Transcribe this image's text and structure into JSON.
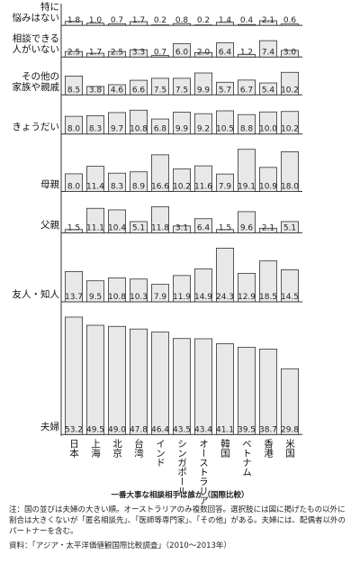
{
  "chart_data": {
    "type": "bar",
    "categories": [
      "日本",
      "上海",
      "北京",
      "台湾",
      "インド",
      "シンガポール",
      "オーストラリア",
      "韓国",
      "ベトナム",
      "香港",
      "米国"
    ],
    "series": [
      {
        "name": "特に\n悩みはない",
        "color": "#e8e8e8",
        "values": [
          1.8,
          1.0,
          0.7,
          1.7,
          0.2,
          0.8,
          0.2,
          1.4,
          0.4,
          2.1,
          0.6
        ],
        "value_labels": [
          "1.8",
          "1.0",
          "0.7",
          "1.7",
          "0.2",
          "0.8",
          "0.2",
          "1.4",
          "0.4",
          "2.1",
          "0.6"
        ]
      },
      {
        "name": "相談できる\n人がいない",
        "color": "#e8e8e8",
        "values": [
          2.5,
          1.7,
          2.5,
          3.3,
          0.7,
          6.0,
          2.0,
          6.4,
          1.2,
          7.4,
          3.0
        ],
        "value_labels": [
          "2.5",
          "1.7",
          "2.5",
          "3.3",
          "0.7",
          "6.0",
          "2.0",
          "6.4",
          "1.2",
          "7.4",
          "3.0"
        ]
      },
      {
        "name": "その他の\n家族や親戚",
        "color": "#e8e8e8",
        "values": [
          8.5,
          3.8,
          4.6,
          6.6,
          7.5,
          7.5,
          9.9,
          5.7,
          6.7,
          5.4,
          10.2
        ],
        "value_labels": [
          "8.5",
          "3.8",
          "4.6",
          "6.6",
          "7.5",
          "7.5",
          "9.9",
          "5.7",
          "6.7",
          "5.4",
          "10.2"
        ]
      },
      {
        "name": "きょうだい",
        "color": "#e8e8e8",
        "values": [
          8.0,
          8.3,
          9.7,
          10.8,
          6.8,
          9.9,
          9.2,
          10.5,
          8.8,
          10.0,
          10.2
        ],
        "value_labels": [
          "8.0",
          "8.3",
          "9.7",
          "10.8",
          "6.8",
          "9.9",
          "9.2",
          "10.5",
          "8.8",
          "10.0",
          "10.2"
        ]
      },
      {
        "name": "母親",
        "color": "#e8e8e8",
        "values": [
          8.0,
          11.4,
          8.3,
          8.9,
          16.6,
          10.2,
          11.6,
          7.9,
          19.1,
          10.9,
          18.0
        ],
        "value_labels": [
          "8.0",
          "11.4",
          "8.3",
          "8.9",
          "16.6",
          "10.2",
          "11.6",
          "7.9",
          "19.1",
          "10.9",
          "18.0"
        ]
      },
      {
        "name": "父親",
        "color": "#e8e8e8",
        "values": [
          1.5,
          11.1,
          10.4,
          5.1,
          11.8,
          3.1,
          6.4,
          1.5,
          9.6,
          2.1,
          5.1
        ],
        "value_labels": [
          "1.5",
          "11.1",
          "10.4",
          "5.1",
          "11.8",
          "3.1",
          "6.4",
          "1.5",
          "9.6",
          "2.1",
          "5.1"
        ]
      },
      {
        "name": "友人・知人",
        "color": "#e8e8e8",
        "values": [
          13.7,
          9.5,
          10.8,
          10.3,
          7.9,
          11.9,
          14.9,
          24.3,
          12.9,
          18.5,
          14.5
        ],
        "value_labels": [
          "13.7",
          "9.5",
          "10.8",
          "10.3",
          "7.9",
          "11.9",
          "14.9",
          "24.3",
          "12.9",
          "18.5",
          "14.5"
        ]
      },
      {
        "name": "夫婦",
        "color": "#e8e8e8",
        "values": [
          53.2,
          49.5,
          49.0,
          47.8,
          46.4,
          43.5,
          43.4,
          41.1,
          39.5,
          38.7,
          29.8
        ],
        "value_labels": [
          "53.2",
          "49.5",
          "49.0",
          "47.8",
          "46.4",
          "43.5",
          "43.4",
          "41.1",
          "39.5",
          "38.7",
          "29.8"
        ]
      }
    ],
    "caption": "一番大事な相談相手は誰か（国際比較）",
    "note": "注：国の並びは夫婦の大きい順。オーストラリアのみ複数回答。選択肢には図に掲げたもの以外に割合は大きくないが「匿名相談先」、「医師等専門家」、「その他」がある。夫婦には、配偶者以外のパートナーを含む。",
    "source": "資料：「アジア・太平洋価値観国際比較調査」（2010～2013年）"
  }
}
